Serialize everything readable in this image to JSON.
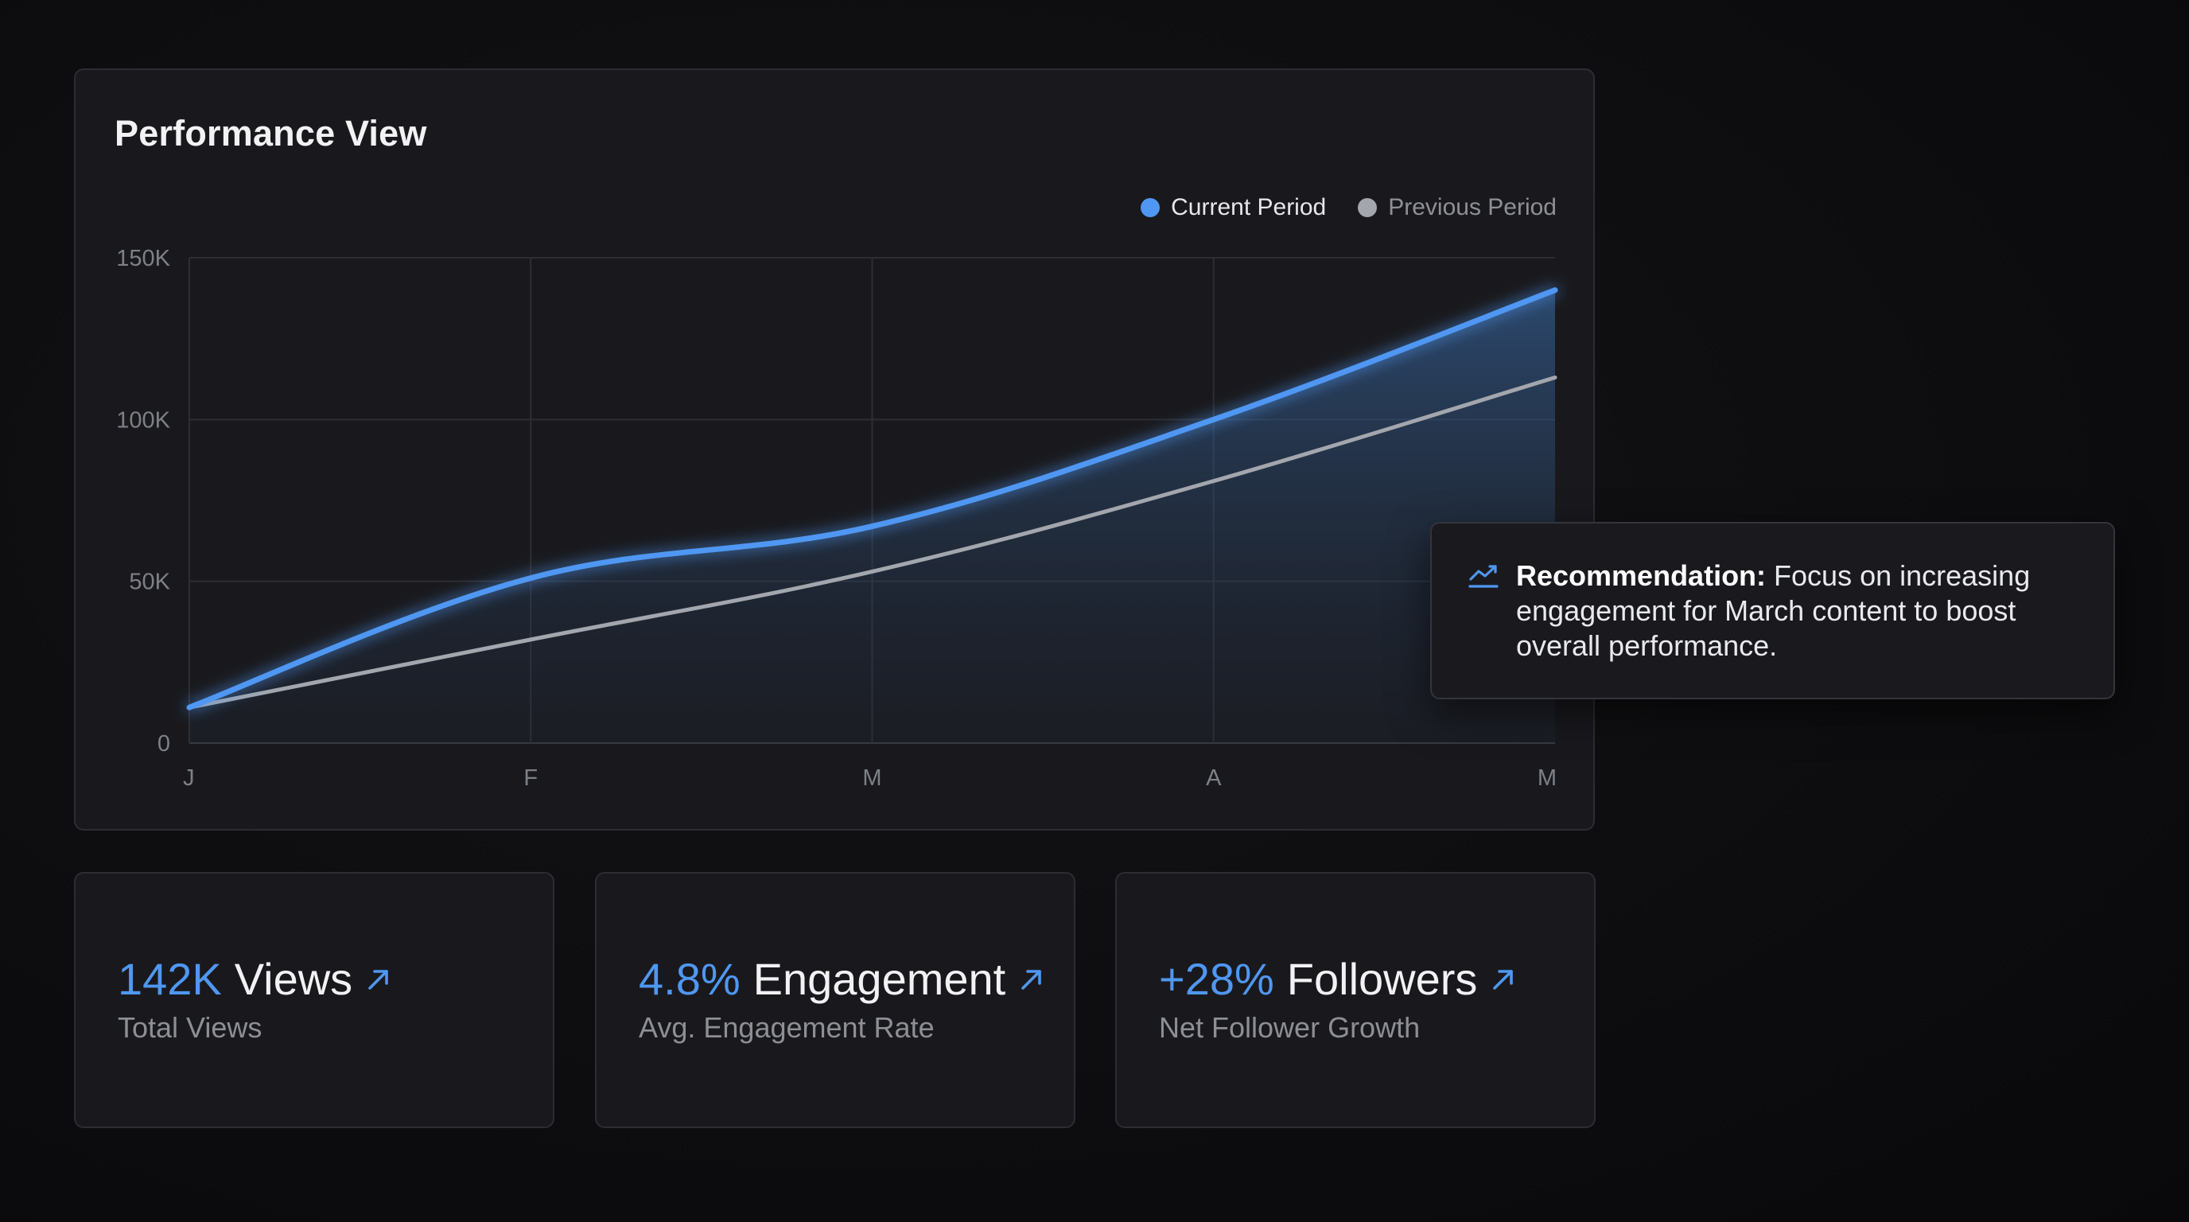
{
  "panel": {
    "title": "Performance View"
  },
  "legend": {
    "current_label": "Current Period",
    "previous_label": "Previous Period"
  },
  "colors": {
    "accent_blue": "#4f97f2",
    "previous_gray": "#a3a6ad",
    "background": "#0e0e11",
    "panel": "#19191d"
  },
  "chart_data": {
    "type": "line",
    "title": "Performance View",
    "categories": [
      "J",
      "F",
      "M",
      "A",
      "M"
    ],
    "y_ticks": [
      "0",
      "50K",
      "100K",
      "150K"
    ],
    "ylim": [
      0,
      150000
    ],
    "grid": true,
    "legend_placement": "top-right",
    "series": [
      {
        "name": "Current Period",
        "color": "#4f97f2",
        "values": [
          11000,
          51000,
          67000,
          100000,
          140000
        ],
        "area_fill": true
      },
      {
        "name": "Previous Period",
        "color": "#a3a6ad",
        "values": [
          11000,
          32000,
          53000,
          81000,
          113000
        ],
        "area_fill": false
      }
    ]
  },
  "tooltip": {
    "icon": "trend-up-icon",
    "label": "Recommendation:",
    "text": " Focus on increasing engagement for March content to boost overall performance."
  },
  "cards": [
    {
      "value": "142K",
      "unit": "Views",
      "subtitle": "Total Views",
      "icon": "arrow-up-right-icon"
    },
    {
      "value": "4.8%",
      "unit": "Engagement",
      "subtitle": "Avg. Engagement Rate",
      "icon": "arrow-up-right-icon"
    },
    {
      "value": "+28%",
      "unit": "Followers",
      "subtitle": "Net Follower Growth",
      "icon": "arrow-up-right-icon"
    }
  ]
}
